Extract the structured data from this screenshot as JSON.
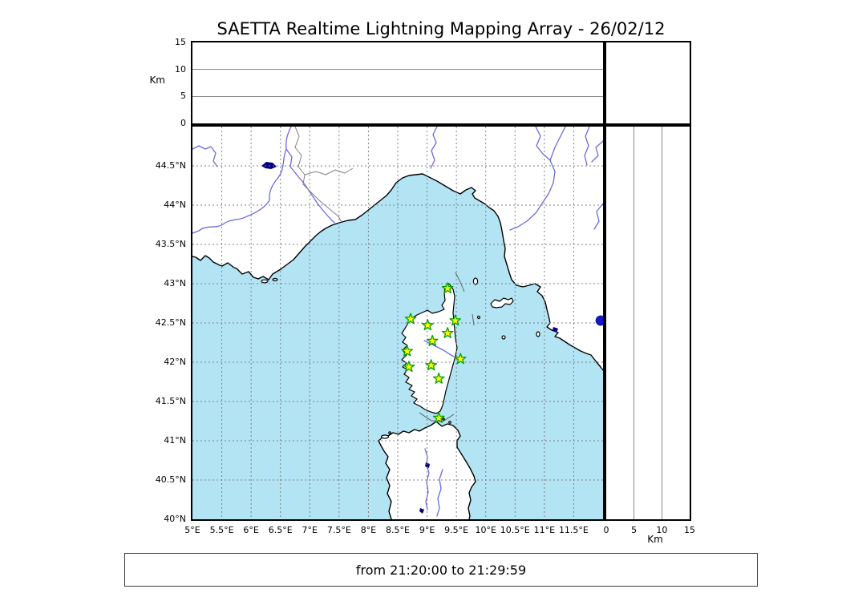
{
  "title": "SAETTA Realtime Lightning Mapping Array - 26/02/12",
  "footer": {
    "time_range": "from 21:20:00 to 21:29:59"
  },
  "altitude_axis": {
    "label": "Km",
    "range": [
      0,
      15
    ],
    "ticks": [
      {
        "v": 0,
        "label": "0"
      },
      {
        "v": 5,
        "label": "5"
      },
      {
        "v": 10,
        "label": "10"
      },
      {
        "v": 15,
        "label": "15"
      }
    ],
    "gridlines": [
      5,
      10
    ]
  },
  "map": {
    "lon_range": [
      5,
      12
    ],
    "lat_range": [
      40,
      45
    ],
    "lon_ticks": [
      {
        "v": 5,
        "label": "5°E"
      },
      {
        "v": 5.5,
        "label": "5.5°E"
      },
      {
        "v": 6,
        "label": "6°E"
      },
      {
        "v": 6.5,
        "label": "6.5°E"
      },
      {
        "v": 7,
        "label": "7°E"
      },
      {
        "v": 7.5,
        "label": "7.5°E"
      },
      {
        "v": 8,
        "label": "8°E"
      },
      {
        "v": 8.5,
        "label": "8.5°E"
      },
      {
        "v": 9,
        "label": "9°E"
      },
      {
        "v": 9.5,
        "label": "9.5°E"
      },
      {
        "v": 10,
        "label": "10°E"
      },
      {
        "v": 10.5,
        "label": "10.5°E"
      },
      {
        "v": 11,
        "label": "11°E"
      },
      {
        "v": 11.5,
        "label": "11.5°E"
      }
    ],
    "lat_ticks": [
      {
        "v": 44.5,
        "label": "44.5°N"
      },
      {
        "v": 44,
        "label": "44°N"
      },
      {
        "v": 43.5,
        "label": "43.5°N"
      },
      {
        "v": 43,
        "label": "43°N"
      },
      {
        "v": 42.5,
        "label": "42.5°N"
      },
      {
        "v": 42,
        "label": "42°N"
      },
      {
        "v": 41.5,
        "label": "41.5°N"
      },
      {
        "v": 41,
        "label": "41°N"
      },
      {
        "v": 40.5,
        "label": "40.5°N"
      },
      {
        "v": 40,
        "label": "40°N"
      }
    ],
    "grid_lon_values": [
      5.5,
      6,
      6.5,
      7,
      7.5,
      8,
      8.5,
      9,
      9.5,
      10,
      10.5,
      11,
      11.5
    ],
    "grid_lat_values": [
      40.5,
      41,
      41.5,
      42,
      42.5,
      43,
      43.5,
      44,
      44.5
    ],
    "stations": [
      {
        "lon": 9.35,
        "lat": 42.94
      },
      {
        "lon": 8.72,
        "lat": 42.55
      },
      {
        "lon": 9.01,
        "lat": 42.47
      },
      {
        "lon": 9.48,
        "lat": 42.53
      },
      {
        "lon": 9.35,
        "lat": 42.37
      },
      {
        "lon": 9.09,
        "lat": 42.27
      },
      {
        "lon": 8.66,
        "lat": 42.14
      },
      {
        "lon": 9.57,
        "lat": 42.04
      },
      {
        "lon": 8.69,
        "lat": 41.94
      },
      {
        "lon": 9.07,
        "lat": 41.96
      },
      {
        "lon": 9.2,
        "lat": 41.79
      },
      {
        "lon": 9.2,
        "lat": 41.29
      }
    ],
    "event_marker": {
      "lon": 11.96,
      "lat": 42.53
    }
  },
  "colors": {
    "sea": "#b3e4f4",
    "land": "#ffffff",
    "river": "#6b6be0",
    "grid": "#808080",
    "station_fill": "#ffff00",
    "station_edge": "#00a000",
    "event": "#1414cc",
    "lake": "#000080",
    "border_line": "#808080"
  }
}
